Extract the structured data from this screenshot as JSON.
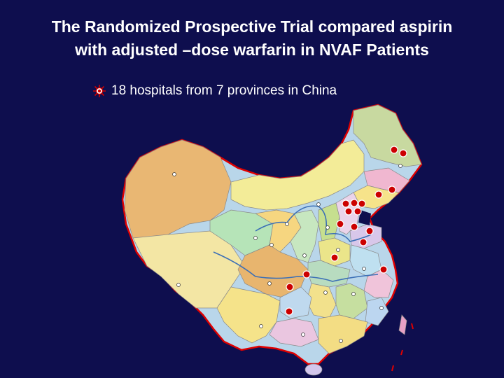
{
  "slide": {
    "title_line1": "The Randomized Prospective Trial compared aspirin",
    "title_line2": "with adjusted –dose warfarin in NVAF Patients",
    "bullet_text": "18 hospitals from 7 provinces in China",
    "bullet_icon": "hospital-star-icon"
  },
  "map": {
    "hospital_count": 18,
    "province_count": 7,
    "marker_color": "#cc0000",
    "background_color": "#0e0e4e"
  }
}
